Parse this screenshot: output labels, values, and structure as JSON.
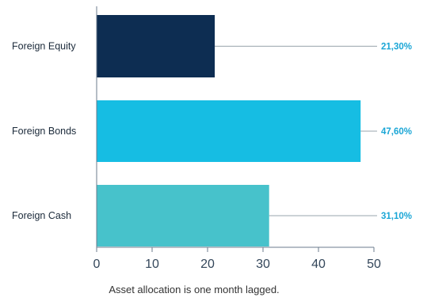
{
  "chart_data": {
    "type": "bar",
    "orientation": "horizontal",
    "categories": [
      "Foreign Equity",
      "Foreign Bonds",
      "Foreign Cash"
    ],
    "values": [
      21.3,
      47.6,
      31.1
    ],
    "value_labels": [
      "21,30%",
      "47,60%",
      "31,10%"
    ],
    "colors": [
      "#0d2d52",
      "#16bde3",
      "#47c2cb"
    ],
    "label_color": "#1aa6d6",
    "xlim": [
      0,
      50
    ],
    "xticks": [
      "0",
      "10",
      "20",
      "30",
      "40",
      "50"
    ],
    "grid": false,
    "title": "",
    "xlabel": "",
    "ylabel": ""
  },
  "footnote": "Asset allocation is one month lagged."
}
